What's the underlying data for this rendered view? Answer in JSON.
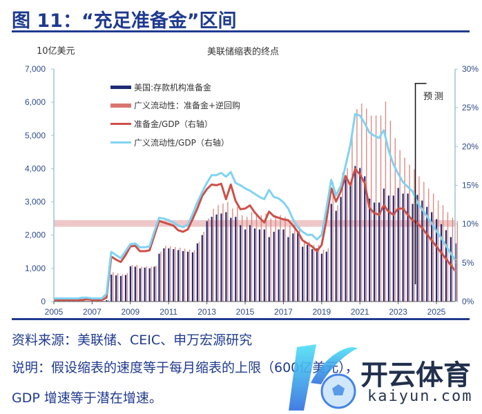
{
  "figure": {
    "title": "图 11：“充足准备金”区间",
    "source": "资料来源：美联储、CEIC、申万宏源研究",
    "note_line1": "说明：假设缩表的速度等于每月缩表的上限（600亿美元），",
    "note_line2": "GDP 增速等于潜在增速。"
  },
  "watermark": {
    "brand_cn": "开云体育",
    "brand_en": "kaiyun.com"
  },
  "colors": {
    "title": "#1f3a8f",
    "reserves_bar": "#1f2a78",
    "liquidity_bar": "#d9756f",
    "reserves_gdp_line": "#cc4f48",
    "liquidity_gdp_line": "#7fd3f2",
    "axis": "#9cc3d5",
    "band": "#e3a3a3"
  },
  "chart_data": {
    "type": "bar+line",
    "title": "美联储缩表的终点",
    "ylabel": "10亿美元",
    "ylim": [
      0,
      7000
    ],
    "y2lim": [
      0,
      30
    ],
    "yticks": [
      "0",
      "1,000",
      "2,000",
      "3,000",
      "4,000",
      "5,000",
      "6,000",
      "7,000"
    ],
    "y2ticks": [
      "0%",
      "5%",
      "10%",
      "15%",
      "20%",
      "25%",
      "30%"
    ],
    "xticks": [
      "2005",
      "2007",
      "2009",
      "2011",
      "2013",
      "2015",
      "2017",
      "2019",
      "2021",
      "2023",
      "2025"
    ],
    "x_start": 2005.0,
    "x_step": 0.25,
    "legend": [
      "美国:存款机构准备金",
      "广义流动性：准备金+逆回购",
      "准备金/GDP（右轴）",
      "广义流动性/GDP（右轴）"
    ],
    "legend_position": "top-left",
    "forecast_label": "预测",
    "forecast_start": 2023.9,
    "reference_band": {
      "axis": "left",
      "range": [
        2250,
        2450
      ]
    },
    "series": [
      {
        "name": "美国:存款机构准备金",
        "type": "bar",
        "axis": "left",
        "values": [
          15,
          15,
          15,
          15,
          15,
          15,
          15,
          15,
          15,
          15,
          15,
          40,
          810,
          790,
          770,
          800,
          1060,
          1050,
          1000,
          1020,
          1000,
          1050,
          1440,
          1600,
          1600,
          1580,
          1550,
          1520,
          1500,
          1480,
          1750,
          2000,
          2420,
          2550,
          2620,
          2650,
          2690,
          2520,
          2550,
          2300,
          2170,
          2300,
          2200,
          2170,
          2170,
          1940,
          2100,
          2170,
          2170,
          1940,
          2050,
          2100,
          1650,
          1700,
          1580,
          1600,
          1440,
          1500,
          2940,
          2730,
          3150,
          3670,
          3520,
          4080,
          4020,
          3770,
          3100,
          2980,
          2980,
          3400,
          3190,
          3190,
          3420,
          3250,
          3250,
          2940,
          3210,
          3040,
          2850,
          2690,
          2480,
          2330,
          2150,
          1940,
          1750
        ]
      },
      {
        "name": "广义流动性：准备金+逆回购",
        "type": "bar",
        "axis": "left",
        "values": [
          20,
          20,
          20,
          20,
          20,
          20,
          20,
          20,
          20,
          20,
          20,
          50,
          880,
          850,
          820,
          860,
          1100,
          1100,
          1050,
          1060,
          1050,
          1080,
          1500,
          1680,
          1660,
          1640,
          1620,
          1590,
          1560,
          1540,
          1800,
          2100,
          2500,
          2790,
          2900,
          2950,
          3000,
          2800,
          2850,
          2600,
          2550,
          2690,
          2600,
          2600,
          2650,
          2500,
          2600,
          2600,
          2550,
          2300,
          2300,
          2250,
          1790,
          1800,
          1700,
          1700,
          1560,
          1600,
          3600,
          2900,
          3880,
          4020,
          5000,
          5790,
          5960,
          5810,
          5600,
          5600,
          5600,
          6020,
          5440,
          4920,
          4560,
          4330,
          4120,
          3980,
          3770,
          3600,
          3400,
          3250,
          3040,
          2900,
          2690,
          2520,
          2420
        ]
      },
      {
        "name": "准备金/GDP（右轴）",
        "type": "line",
        "axis": "right",
        "values": [
          0.2,
          0.2,
          0.2,
          0.2,
          0.2,
          0.2,
          0.2,
          0.3,
          0.2,
          0.2,
          0.2,
          0.5,
          5.8,
          5.4,
          5.1,
          6.0,
          7.1,
          7.2,
          6.5,
          6.5,
          6.6,
          8.5,
          10.4,
          10.2,
          10.0,
          9.8,
          9.2,
          9.0,
          9.3,
          10.6,
          12.0,
          13.6,
          14.5,
          15.1,
          15.0,
          15.2,
          13.2,
          15.1,
          13.0,
          11.9,
          12.0,
          12.4,
          11.5,
          10.8,
          10.2,
          11.6,
          11.0,
          10.8,
          10.6,
          10.5,
          9.8,
          9.0,
          7.9,
          7.5,
          7.1,
          6.5,
          7.3,
          10.5,
          14.6,
          12.9,
          14.2,
          16.2,
          15.0,
          17.1,
          16.4,
          15.3,
          12.1,
          11.4,
          11.2,
          12.4,
          11.6,
          11.2,
          12.0,
          12.0,
          11.2,
          10.5,
          10.1,
          9.5,
          8.7,
          7.9,
          7.1,
          6.3,
          5.5,
          4.7,
          3.9
        ]
      },
      {
        "name": "广义流动性/GDP（右轴）",
        "type": "line",
        "axis": "right",
        "values": [
          0.4,
          0.4,
          0.4,
          0.4,
          0.4,
          0.4,
          0.5,
          0.5,
          0.4,
          0.4,
          0.4,
          1.0,
          6.4,
          6.0,
          5.6,
          6.5,
          7.4,
          7.5,
          7.0,
          7.0,
          7.1,
          9.0,
          10.8,
          10.7,
          10.5,
          10.2,
          9.8,
          9.6,
          9.9,
          11.25,
          12.8,
          14.1,
          15.3,
          16.3,
          16.3,
          16.6,
          16.1,
          16.7,
          15.3,
          15.0,
          14.6,
          14.3,
          13.9,
          13.5,
          13.2,
          14.4,
          13.5,
          13.3,
          12.8,
          12.0,
          10.6,
          9.6,
          9.0,
          8.6,
          8.6,
          8.0,
          8.6,
          12.0,
          15.7,
          13.7,
          14.9,
          17.5,
          20.2,
          24.2,
          24.0,
          23.0,
          21.8,
          21.4,
          21.1,
          22.1,
          19.5,
          17.7,
          16.5,
          15.4,
          14.8,
          14.2,
          12.8,
          11.9,
          11.0,
          10.1,
          9.1,
          8.2,
          7.2,
          6.2,
          5.3
        ]
      }
    ]
  }
}
